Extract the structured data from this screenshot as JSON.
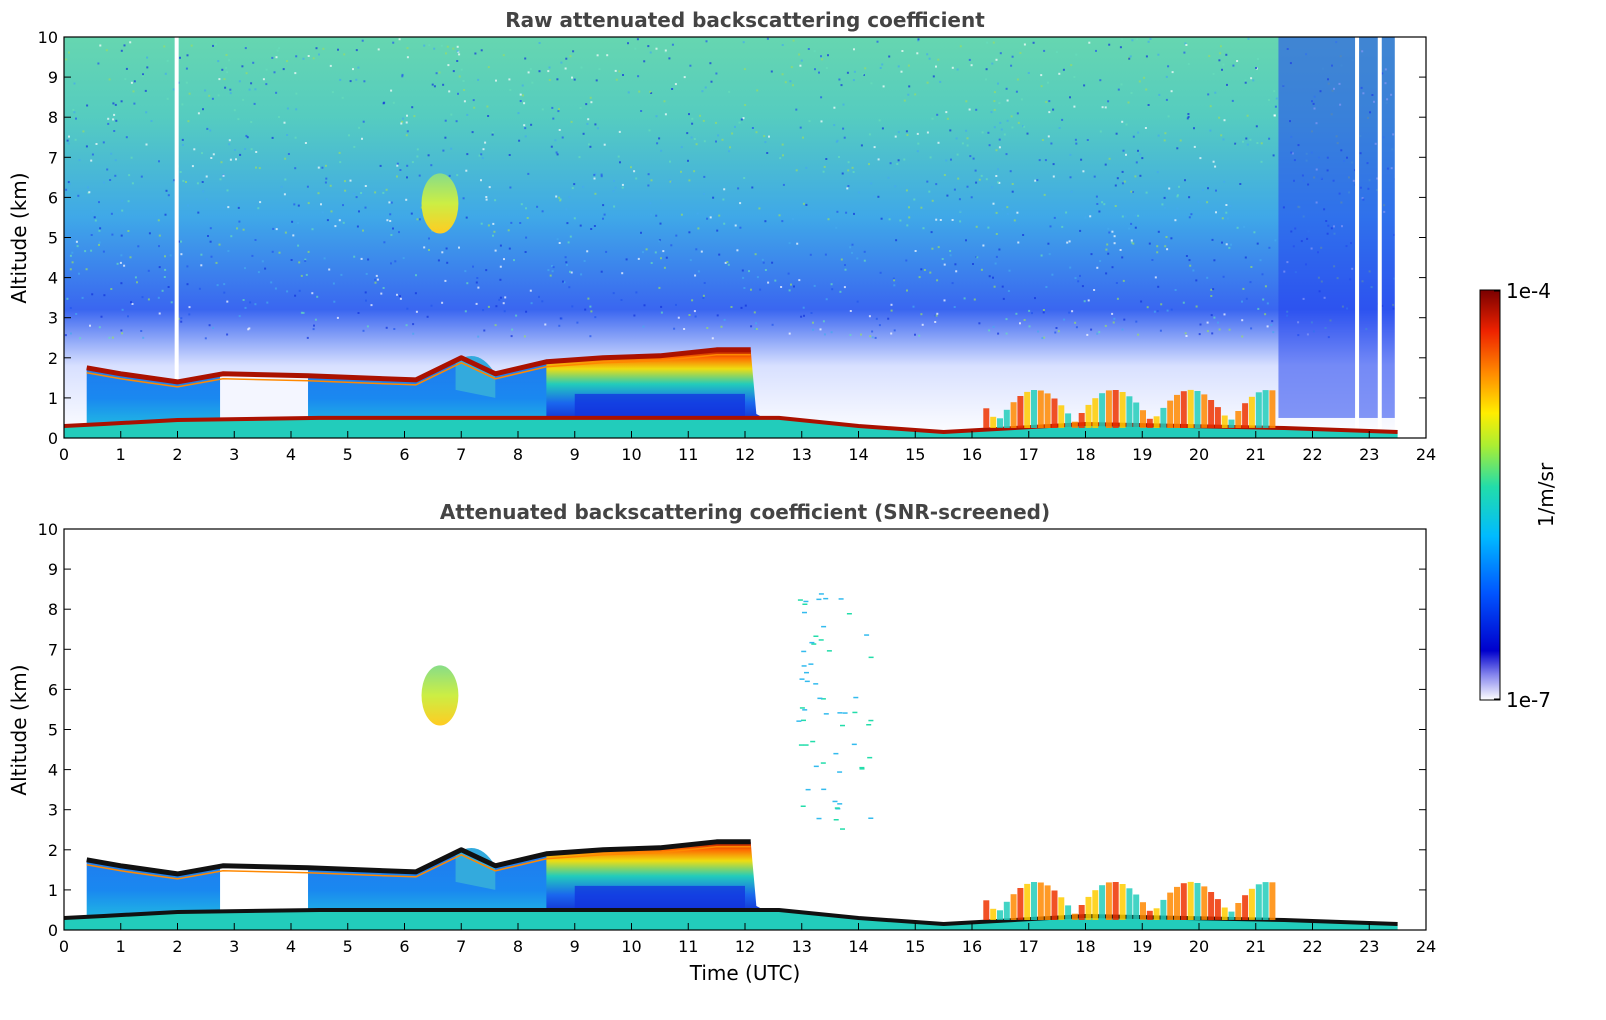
{
  "chart_data": [
    {
      "type": "heatmap",
      "title": "Raw attenuated backscattering coefficient",
      "xlabel": "",
      "ylabel": "Altitude (km)",
      "xlim": [
        0,
        24
      ],
      "ylim": [
        0,
        10
      ],
      "xticks": [
        "0",
        "1",
        "2",
        "3",
        "4",
        "5",
        "6",
        "7",
        "8",
        "9",
        "10",
        "11",
        "12",
        "13",
        "14",
        "15",
        "16",
        "17",
        "18",
        "19",
        "20",
        "21",
        "22",
        "23",
        "24"
      ],
      "yticks": [
        "0",
        "1",
        "2",
        "3",
        "4",
        "5",
        "6",
        "7",
        "8",
        "9",
        "10"
      ],
      "grid": false,
      "screened": false
    },
    {
      "type": "heatmap",
      "title": "Attenuated backscattering coefficient (SNR-screened)",
      "xlabel": "Time (UTC)",
      "ylabel": "Altitude (km)",
      "xlim": [
        0,
        24
      ],
      "ylim": [
        0,
        10
      ],
      "xticks": [
        "0",
        "1",
        "2",
        "3",
        "4",
        "5",
        "6",
        "7",
        "8",
        "9",
        "10",
        "11",
        "12",
        "13",
        "14",
        "15",
        "16",
        "17",
        "18",
        "19",
        "20",
        "21",
        "22",
        "23",
        "24"
      ],
      "yticks": [
        "0",
        "1",
        "2",
        "3",
        "4",
        "5",
        "6",
        "7",
        "8",
        "9",
        "10"
      ],
      "grid": false,
      "screened": true
    }
  ],
  "colorbar": {
    "label": "1/m/sr",
    "max_label": "1e-4",
    "min_label": "1e-7",
    "colormap": "jet",
    "colors": [
      "#ffffff",
      "#0000cc",
      "#0055ff",
      "#00bbff",
      "#22ddaa",
      "#aaee33",
      "#ffdd00",
      "#ff8800",
      "#ee2200",
      "#880000"
    ]
  },
  "data_features": {
    "boundary_layer_top_km": [
      [
        0.4,
        1.75
      ],
      [
        1.0,
        1.6
      ],
      [
        2.0,
        1.4
      ],
      [
        2.8,
        1.6
      ],
      [
        4.3,
        1.55
      ],
      [
        6.2,
        1.45
      ],
      [
        7.0,
        2.0
      ],
      [
        7.6,
        1.6
      ],
      [
        8.5,
        1.9
      ],
      [
        9.5,
        2.0
      ],
      [
        10.5,
        2.05
      ],
      [
        11.5,
        2.2
      ],
      [
        12.1,
        2.2
      ]
    ],
    "surface_layer_top_km": [
      [
        0.0,
        0.3
      ],
      [
        0.7,
        0.35
      ],
      [
        2.0,
        0.45
      ],
      [
        4.5,
        0.5
      ],
      [
        12.6,
        0.5
      ],
      [
        14.0,
        0.3
      ],
      [
        15.5,
        0.15
      ],
      [
        18.0,
        0.35
      ],
      [
        21.5,
        0.25
      ],
      [
        23.5,
        0.15
      ]
    ],
    "mid_level_cloud": {
      "x_range": [
        6.3,
        6.95
      ],
      "y_range_km": [
        5.1,
        6.6
      ]
    },
    "signal_end_time": 23.5
  }
}
